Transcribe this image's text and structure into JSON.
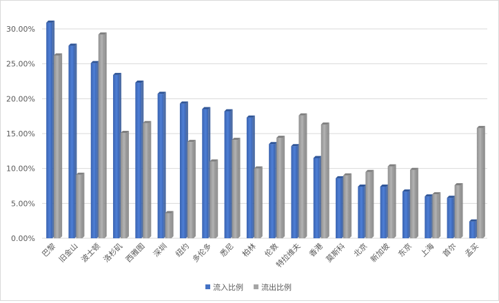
{
  "chart_data": {
    "type": "bar",
    "categories": [
      "巴黎",
      "旧金山",
      "波士顿",
      "洛杉矶",
      "西雅图",
      "深圳",
      "纽约",
      "多伦多",
      "悉尼",
      "柏林",
      "伦敦",
      "特拉维夫",
      "香港",
      "莫斯科",
      "北京",
      "新加坡",
      "东京",
      "上海",
      "首尔",
      "孟买"
    ],
    "series": [
      {
        "name": "流入比例",
        "color": "#4472C4",
        "values": [
          30.9,
          27.6,
          25.1,
          23.4,
          22.3,
          20.7,
          19.3,
          18.5,
          18.2,
          17.3,
          13.5,
          13.2,
          11.5,
          8.6,
          7.4,
          7.4,
          6.7,
          6.0,
          5.8,
          2.4
        ]
      },
      {
        "name": "流出比例",
        "color": "#A5A5A5",
        "values": [
          26.2,
          9.1,
          29.2,
          15.1,
          16.5,
          3.6,
          13.8,
          11.0,
          14.1,
          10.0,
          14.4,
          17.6,
          16.3,
          9.0,
          9.5,
          10.3,
          9.8,
          6.3,
          7.6,
          15.8
        ]
      }
    ],
    "y_ticks": [
      "0.00%",
      "5.00%",
      "10.00%",
      "15.00%",
      "20.00%",
      "25.00%",
      "30.00%"
    ],
    "ylim": [
      0,
      30
    ],
    "grid": true,
    "legend_position": "bottom",
    "title": "",
    "xlabel": "",
    "ylabel": ""
  }
}
